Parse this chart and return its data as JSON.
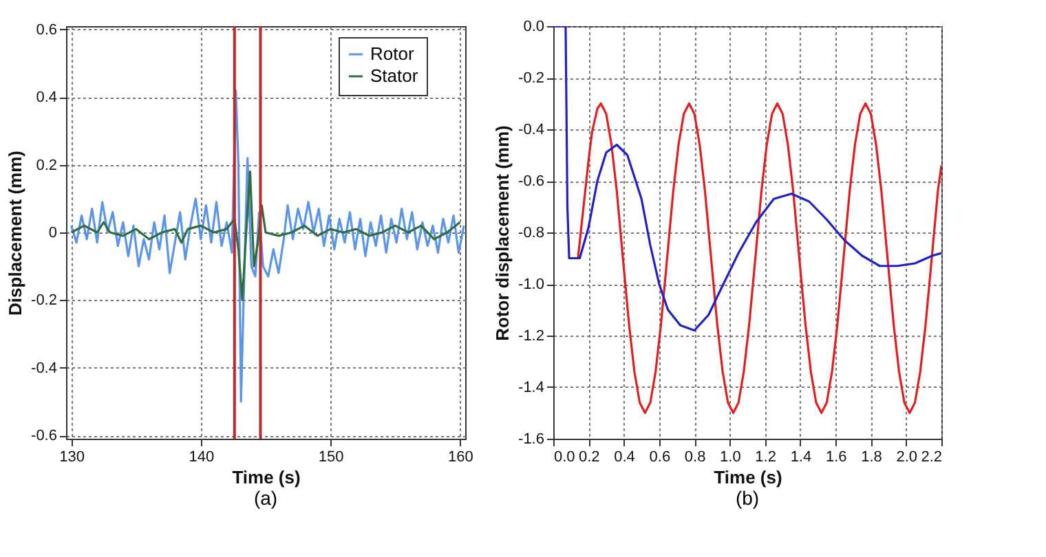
{
  "chart_data": [
    {
      "type": "line",
      "xlabel": "Time (s)",
      "ylabel": "Displacement (mm)",
      "annotations": [
        "(a)"
      ],
      "xlim": [
        129.6,
        160.4
      ],
      "xticks": [
        130,
        140,
        150,
        160
      ],
      "ylim": [
        -0.61,
        0.61
      ],
      "yticks": [
        -0.6,
        -0.4,
        -0.2,
        0,
        0.2,
        0.4,
        0.6
      ],
      "grid": true,
      "legend": "top right",
      "ref_lines": [
        {
          "axis": "x",
          "value": 142.6,
          "color": "#c0282d"
        },
        {
          "axis": "x",
          "value": 144.6,
          "color": "#c0282d"
        }
      ],
      "series": [
        {
          "name": "Rotor",
          "color": "#5b95e8",
          "x": [
            130,
            130.4,
            130.8,
            131.2,
            131.6,
            132,
            132.4,
            132.8,
            133.2,
            133.6,
            134,
            134.4,
            134.8,
            135.2,
            135.6,
            136,
            136.4,
            136.8,
            137.2,
            137.6,
            138,
            138.4,
            138.8,
            139.2,
            139.6,
            140,
            140.4,
            140.8,
            141.2,
            141.6,
            142,
            142.4,
            142.7,
            142.9,
            143.1,
            143.3,
            143.6,
            143.9,
            144.2,
            144.5,
            144.8,
            145.2,
            145.6,
            146,
            146.4,
            146.7,
            147.1,
            147.5,
            147.9,
            148.3,
            148.7,
            149.1,
            149.5,
            149.9,
            150.3,
            150.7,
            151.1,
            151.5,
            151.9,
            152.3,
            152.7,
            153.1,
            153.5,
            153.9,
            154.3,
            154.7,
            155.1,
            155.5,
            155.9,
            156.3,
            156.7,
            157.1,
            157.5,
            157.9,
            158.3,
            158.7,
            159.1,
            159.5,
            159.9,
            160.3
          ],
          "values": [
            0.02,
            -0.03,
            0.05,
            -0.02,
            0.07,
            -0.03,
            0.09,
            0.0,
            0.06,
            -0.04,
            0.03,
            -0.07,
            0.02,
            -0.1,
            -0.02,
            -0.08,
            0.03,
            -0.05,
            0.05,
            -0.12,
            -0.03,
            0.06,
            -0.08,
            0.02,
            0.1,
            -0.02,
            0.08,
            -0.03,
            0.09,
            -0.04,
            0.03,
            -0.06,
            0.42,
            0.2,
            -0.5,
            -0.2,
            0.22,
            -0.1,
            -0.13,
            0.06,
            -0.1,
            -0.13,
            -0.05,
            -0.12,
            -0.02,
            0.08,
            -0.02,
            0.07,
            0.01,
            0.09,
            0.0,
            0.07,
            -0.04,
            0.05,
            -0.05,
            0.04,
            -0.03,
            0.06,
            -0.05,
            0.04,
            -0.07,
            0.03,
            -0.04,
            0.05,
            -0.06,
            0.04,
            -0.03,
            0.07,
            -0.02,
            0.06,
            -0.05,
            0.03,
            -0.04,
            0.02,
            -0.06,
            0.04,
            -0.03,
            0.05,
            -0.06,
            0.02
          ]
        },
        {
          "name": "Stator",
          "color": "#2f6e3e",
          "x": [
            130,
            131,
            132,
            132.5,
            133,
            134,
            135,
            136,
            137,
            138,
            138.5,
            139,
            140,
            141,
            142,
            142.6,
            142.9,
            143.2,
            143.5,
            143.8,
            144.1,
            144.4,
            144.7,
            145,
            146,
            147,
            148,
            149,
            150,
            151,
            152,
            153,
            154,
            155,
            156,
            157,
            158,
            159,
            160
          ],
          "values": [
            0.0,
            0.02,
            0.0,
            0.03,
            0.0,
            -0.01,
            0.01,
            -0.02,
            0.0,
            0.01,
            -0.03,
            0.01,
            0.02,
            0.0,
            0.01,
            0.04,
            -0.05,
            -0.2,
            0.0,
            0.18,
            -0.1,
            -0.03,
            0.08,
            0.0,
            -0.01,
            0.0,
            0.02,
            -0.01,
            0.01,
            0.0,
            0.01,
            -0.01,
            0.0,
            0.02,
            0.0,
            0.02,
            -0.02,
            0.0,
            0.03
          ]
        }
      ]
    },
    {
      "type": "line",
      "xlabel": "Time (s)",
      "ylabel": "Rotor displacement (mm)",
      "annotations": [
        "(b)"
      ],
      "xlim": [
        0,
        2.2
      ],
      "xticks": [
        {
          "value": 0,
          "label": "0.0"
        },
        0.2,
        0.4,
        0.6,
        0.8,
        {
          "value": 1,
          "label": "1.0"
        },
        1.2,
        1.4,
        1.6,
        1.8,
        {
          "value": 2,
          "label": "2.0"
        },
        2.2
      ],
      "ylim": [
        -1.6,
        0
      ],
      "yticks": [
        -1.6,
        -1.4,
        -1.2,
        {
          "value": -1,
          "label": "-1.0"
        },
        -0.8,
        -0.6,
        -0.4,
        -0.2,
        {
          "value": 0,
          "label": "0.0"
        }
      ],
      "grid": true,
      "series": [
        {
          "color": "#e02020",
          "x": [
            0.14,
            0.17,
            0.2,
            0.22,
            0.25,
            0.27,
            0.3,
            0.33,
            0.36,
            0.4,
            0.43,
            0.46,
            0.49,
            0.52,
            0.55,
            0.58,
            0.61,
            0.64,
            0.68,
            0.71,
            0.74,
            0.77,
            0.8,
            0.83,
            0.86,
            0.9,
            0.93,
            0.96,
            0.99,
            1.02,
            1.05,
            1.08,
            1.11,
            1.14,
            1.18,
            1.21,
            1.24,
            1.27,
            1.3,
            1.33,
            1.36,
            1.4,
            1.43,
            1.46,
            1.49,
            1.52,
            1.55,
            1.58,
            1.61,
            1.64,
            1.68,
            1.71,
            1.74,
            1.77,
            1.8,
            1.83,
            1.86,
            1.9,
            1.93,
            1.96,
            1.99,
            2.02,
            2.05,
            2.08,
            2.11,
            2.14,
            2.18,
            2.2
          ],
          "values": [
            -0.9,
            -0.71,
            -0.52,
            -0.41,
            -0.32,
            -0.3,
            -0.34,
            -0.46,
            -0.64,
            -0.94,
            -1.16,
            -1.34,
            -1.46,
            -1.5,
            -1.46,
            -1.34,
            -1.16,
            -0.94,
            -0.64,
            -0.46,
            -0.34,
            -0.3,
            -0.34,
            -0.46,
            -0.64,
            -0.94,
            -1.16,
            -1.34,
            -1.46,
            -1.5,
            -1.46,
            -1.34,
            -1.16,
            -0.94,
            -0.64,
            -0.46,
            -0.34,
            -0.3,
            -0.34,
            -0.46,
            -0.64,
            -0.94,
            -1.16,
            -1.34,
            -1.46,
            -1.5,
            -1.46,
            -1.34,
            -1.16,
            -0.94,
            -0.64,
            -0.46,
            -0.34,
            -0.3,
            -0.34,
            -0.46,
            -0.64,
            -0.94,
            -1.16,
            -1.34,
            -1.46,
            -1.5,
            -1.46,
            -1.34,
            -1.16,
            -0.94,
            -0.64,
            -0.54
          ]
        },
        {
          "color": "#2020c8",
          "x": [
            0,
            0.07,
            0.08,
            0.09,
            0.15,
            0.2,
            0.25,
            0.3,
            0.36,
            0.42,
            0.5,
            0.55,
            0.6,
            0.65,
            0.72,
            0.8,
            0.88,
            0.95,
            1.05,
            1.15,
            1.25,
            1.35,
            1.45,
            1.55,
            1.65,
            1.75,
            1.85,
            1.95,
            2.05,
            2.15,
            2.2
          ],
          "values": [
            0,
            0,
            -0.7,
            -0.9,
            -0.9,
            -0.78,
            -0.6,
            -0.49,
            -0.46,
            -0.5,
            -0.67,
            -0.85,
            -1.0,
            -1.1,
            -1.16,
            -1.18,
            -1.12,
            -1.02,
            -0.88,
            -0.76,
            -0.67,
            -0.65,
            -0.68,
            -0.75,
            -0.83,
            -0.89,
            -0.93,
            -0.93,
            -0.92,
            -0.89,
            -0.88
          ]
        }
      ]
    }
  ]
}
